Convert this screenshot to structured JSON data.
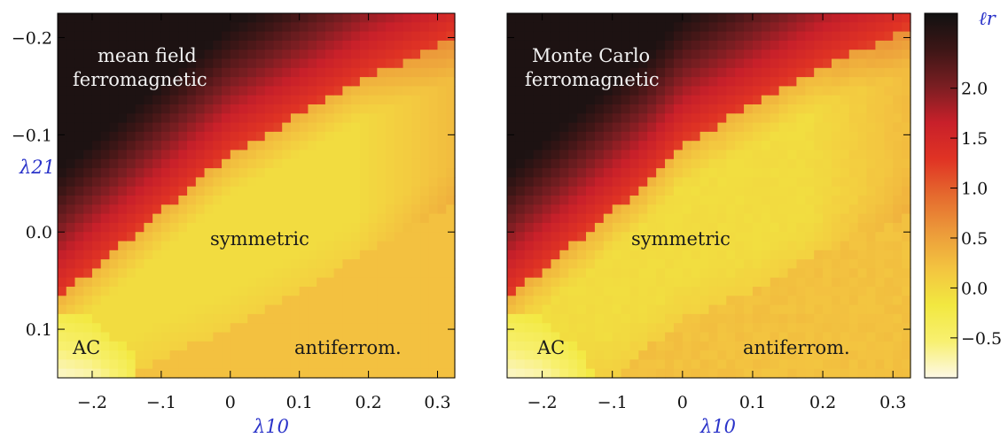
{
  "chart_data": [
    {
      "type": "heatmap",
      "title": "",
      "xlabel": "λ10",
      "ylabel": "λ21",
      "xlim": [
        -0.25,
        0.325
      ],
      "ylim": [
        0.15,
        -0.225
      ],
      "x_ticks": [
        "−.2",
        "−.1",
        "0",
        "0.1",
        "0.2",
        "0.3"
      ],
      "x_tick_values": [
        -0.2,
        -0.1,
        0.0,
        0.1,
        0.2,
        0.3
      ],
      "y_ticks": [
        "−0.2",
        "−0.1",
        "0.0",
        "0.1"
      ],
      "y_tick_values": [
        -0.2,
        -0.1,
        0.0,
        0.1
      ],
      "annotations": [
        "mean field",
        "ferromagnetic",
        "symmetric",
        "AC",
        "antiferrom."
      ],
      "regions": {
        "ferromagnetic_boundary": [
          [
            -0.25,
            0.07
          ],
          [
            -0.2,
            0.04
          ],
          [
            -0.15,
            0.01
          ],
          [
            -0.1,
            -0.02
          ],
          [
            -0.05,
            -0.05
          ],
          [
            0.0,
            -0.08
          ],
          [
            0.1,
            -0.12
          ],
          [
            0.2,
            -0.16
          ],
          [
            0.3,
            -0.19
          ],
          [
            0.325,
            -0.2
          ]
        ],
        "antiferro_boundary": [
          [
            -0.15,
            0.15
          ],
          [
            -0.1,
            0.13
          ],
          [
            0.0,
            0.1
          ],
          [
            0.1,
            0.06
          ],
          [
            0.2,
            0.02
          ],
          [
            0.3,
            -0.02
          ],
          [
            0.325,
            -0.03
          ]
        ],
        "AC_boundary": [
          [
            -0.25,
            0.08
          ],
          [
            -0.2,
            0.09
          ],
          [
            -0.15,
            0.12
          ],
          [
            -0.12,
            0.15
          ]
        ]
      }
    },
    {
      "type": "heatmap",
      "title": "",
      "xlabel": "λ10",
      "ylabel": "",
      "xlim": [
        -0.25,
        0.325
      ],
      "ylim": [
        0.15,
        -0.225
      ],
      "x_ticks": [
        "−.2",
        "−.1",
        "0",
        "0.1",
        "0.2",
        "0.3"
      ],
      "x_tick_values": [
        -0.2,
        -0.1,
        0.0,
        0.1,
        0.2,
        0.3
      ],
      "annotations": [
        "Monte Carlo",
        "ferromagnetic",
        "symmetric",
        "AC",
        "antiferrom."
      ],
      "regions": {
        "ferromagnetic_boundary": [
          [
            -0.25,
            0.07
          ],
          [
            -0.2,
            0.04
          ],
          [
            -0.15,
            0.01
          ],
          [
            -0.1,
            -0.02
          ],
          [
            -0.05,
            -0.05
          ],
          [
            0.0,
            -0.09
          ],
          [
            0.1,
            -0.13
          ],
          [
            0.2,
            -0.17
          ],
          [
            0.3,
            -0.2
          ],
          [
            0.325,
            -0.21
          ]
        ],
        "antiferro_boundary": [
          [
            -0.1,
            0.15
          ],
          [
            -0.05,
            0.12
          ],
          [
            0.0,
            0.09
          ],
          [
            0.1,
            0.06
          ],
          [
            0.2,
            0.02
          ],
          [
            0.3,
            -0.01
          ],
          [
            0.325,
            -0.02
          ]
        ],
        "AC_boundary": [
          [
            -0.25,
            0.08
          ],
          [
            -0.2,
            0.09
          ],
          [
            -0.15,
            0.12
          ],
          [
            -0.12,
            0.15
          ]
        ]
      }
    }
  ],
  "colorbar": {
    "label": "ℓr",
    "ticks": [
      "2.0",
      "1.5",
      "1.0",
      "0.5",
      "0.0",
      "−0.5"
    ],
    "tick_values": [
      2.0,
      1.5,
      1.0,
      0.5,
      0.0,
      -0.5
    ],
    "range": [
      -0.9,
      2.75
    ],
    "colors": [
      "#fdf8e6",
      "#f8f070",
      "#f2e840",
      "#f3c440",
      "#ec9a3a",
      "#e56a2e",
      "#e03324",
      "#c8202a",
      "#7a1e22",
      "#3d1616",
      "#111111"
    ]
  }
}
